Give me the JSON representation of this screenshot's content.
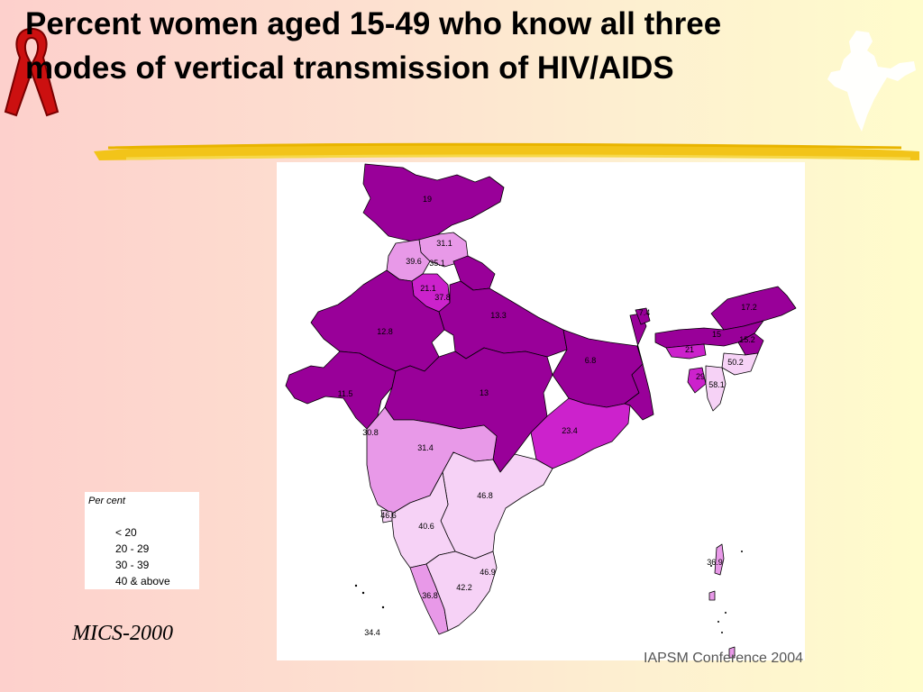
{
  "slide": {
    "title_lines": [
      "Percent women aged 15-49 who know all three",
      "modes of vertical transmission of HIV/AIDS"
    ],
    "source": "MICS-2000",
    "footer": "IAPSM  Conference 2004"
  },
  "legend": {
    "title": "Per cent",
    "items": [
      "< 20",
      "20 - 29",
      "30 - 39",
      "40 & above"
    ]
  },
  "colors": {
    "lt20": "#990099",
    "r20_29": "#cc22cc",
    "r30_39": "#e899e8",
    "ge40": "#f6d2f6",
    "ribbon": "#cc1010",
    "brush": "#f2c419"
  },
  "map_labels": [
    {
      "region": "jammu-kashmir",
      "value": "19"
    },
    {
      "region": "himachal-pradesh",
      "value": "31.1"
    },
    {
      "region": "punjab",
      "value": "39.6"
    },
    {
      "region": "chandigarh",
      "value": "35.1"
    },
    {
      "region": "haryana",
      "value": "21.1"
    },
    {
      "region": "delhi",
      "value": "37.8"
    },
    {
      "region": "uttar-pradesh",
      "value": "13.3"
    },
    {
      "region": "rajasthan",
      "value": "12.8"
    },
    {
      "region": "bihar",
      "value": "6.8"
    },
    {
      "region": "gujarat",
      "value": "11.5"
    },
    {
      "region": "madhya-pradesh",
      "value": "13"
    },
    {
      "region": "orissa",
      "value": "23.4"
    },
    {
      "region": "maharashtra",
      "value": "31.4"
    },
    {
      "region": "diu",
      "value": "30.8"
    },
    {
      "region": "andhra-pradesh",
      "value": "46.8"
    },
    {
      "region": "goa",
      "value": "46.6"
    },
    {
      "region": "karnataka",
      "value": "40.6"
    },
    {
      "region": "tamil-nadu",
      "value": "42.2"
    },
    {
      "region": "pondicherry",
      "value": "46.9"
    },
    {
      "region": "kerala",
      "value": "36.8"
    },
    {
      "region": "lakshadweep",
      "value": "34.4"
    },
    {
      "region": "andaman-nicobar",
      "value": "36.9"
    },
    {
      "region": "arunachal-pradesh",
      "value": "17.2"
    },
    {
      "region": "assam",
      "value": "15"
    },
    {
      "region": "nagaland",
      "value": "15.2"
    },
    {
      "region": "meghalaya",
      "value": "21"
    },
    {
      "region": "manipur",
      "value": "50.2"
    },
    {
      "region": "mizoram",
      "value": "58.1"
    },
    {
      "region": "tripura",
      "value": "29"
    },
    {
      "region": "sikkim",
      "value": "7.4"
    }
  ]
}
